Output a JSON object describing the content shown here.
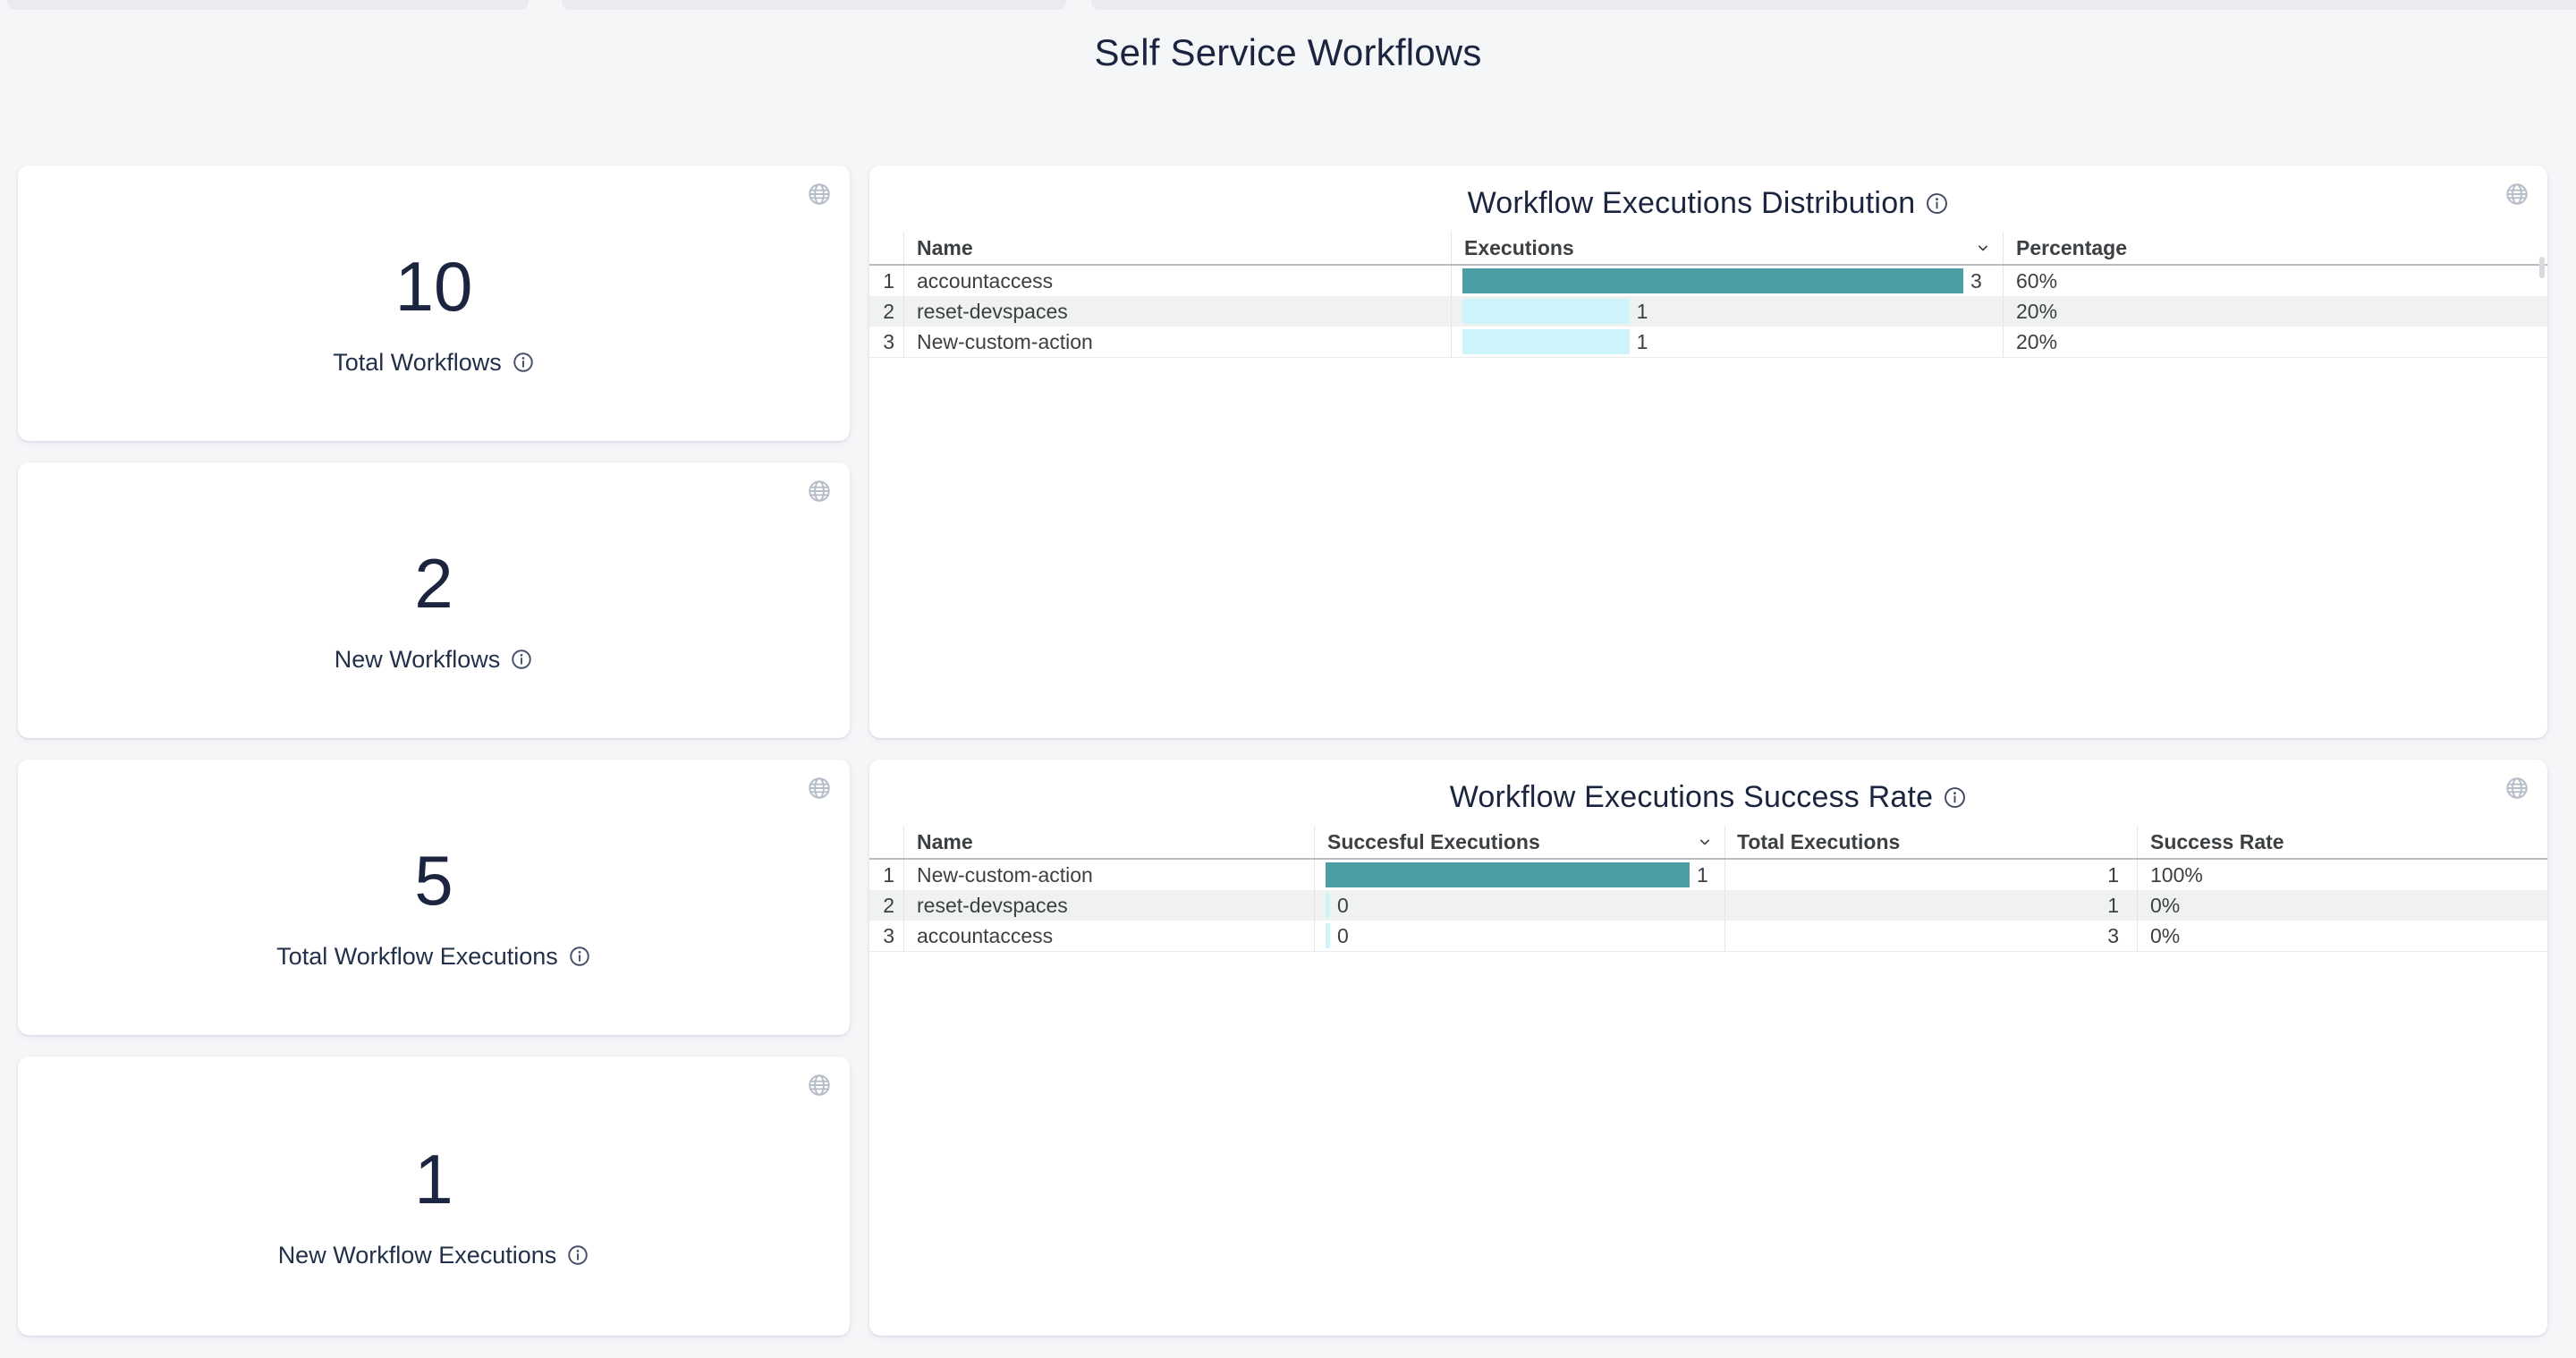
{
  "page": {
    "title": "Self Service Workflows"
  },
  "colors": {
    "page_bg": "#f5f6f8",
    "card_bg": "#ffffff",
    "strip_bg": "#e9ebee",
    "navy": "#22304a",
    "navy_dark": "#1b2540",
    "table_text": "#3c4043",
    "bar_primary": "#4a9ea4",
    "bar_secondary": "#cdf4fb",
    "row_stripe": "#f0f1f1",
    "header_border": "#b8bcc2",
    "col_border": "#e3e5e8",
    "icon_gray": "#b6bdc9"
  },
  "stat_cards": [
    {
      "value": 10,
      "label": "Total Workflows"
    },
    {
      "value": 2,
      "label": "New Workflows"
    },
    {
      "value": 5,
      "label": "Total Workflow Executions"
    },
    {
      "value": 1,
      "label": "New Workflow Executions"
    }
  ],
  "chart_data": [
    {
      "type": "table",
      "title": "Workflow Executions Distribution",
      "columns": [
        "Name",
        "Executions",
        "Percentage"
      ],
      "sorted_by": "Executions",
      "sort_order": "desc",
      "bar_max": 3,
      "rows": [
        {
          "index": 1,
          "name": "accountaccess",
          "executions": 3,
          "percentage": "60%"
        },
        {
          "index": 2,
          "name": "reset-devspaces",
          "executions": 1,
          "percentage": "20%"
        },
        {
          "index": 3,
          "name": "New-custom-action",
          "executions": 1,
          "percentage": "20%"
        }
      ]
    },
    {
      "type": "table",
      "title": "Workflow Executions Success Rate",
      "columns": [
        "Name",
        "Succesful Executions",
        "Total Executions",
        "Success Rate"
      ],
      "sorted_by": "Succesful Executions",
      "sort_order": "desc",
      "bar_max": 1,
      "rows": [
        {
          "index": 1,
          "name": "New-custom-action",
          "successful_executions": 1,
          "total_executions": 1,
          "success_rate": "100%"
        },
        {
          "index": 2,
          "name": "reset-devspaces",
          "successful_executions": 0,
          "total_executions": 1,
          "success_rate": "0%"
        },
        {
          "index": 3,
          "name": "accountaccess",
          "successful_executions": 0,
          "total_executions": 3,
          "success_rate": "0%"
        }
      ]
    }
  ]
}
